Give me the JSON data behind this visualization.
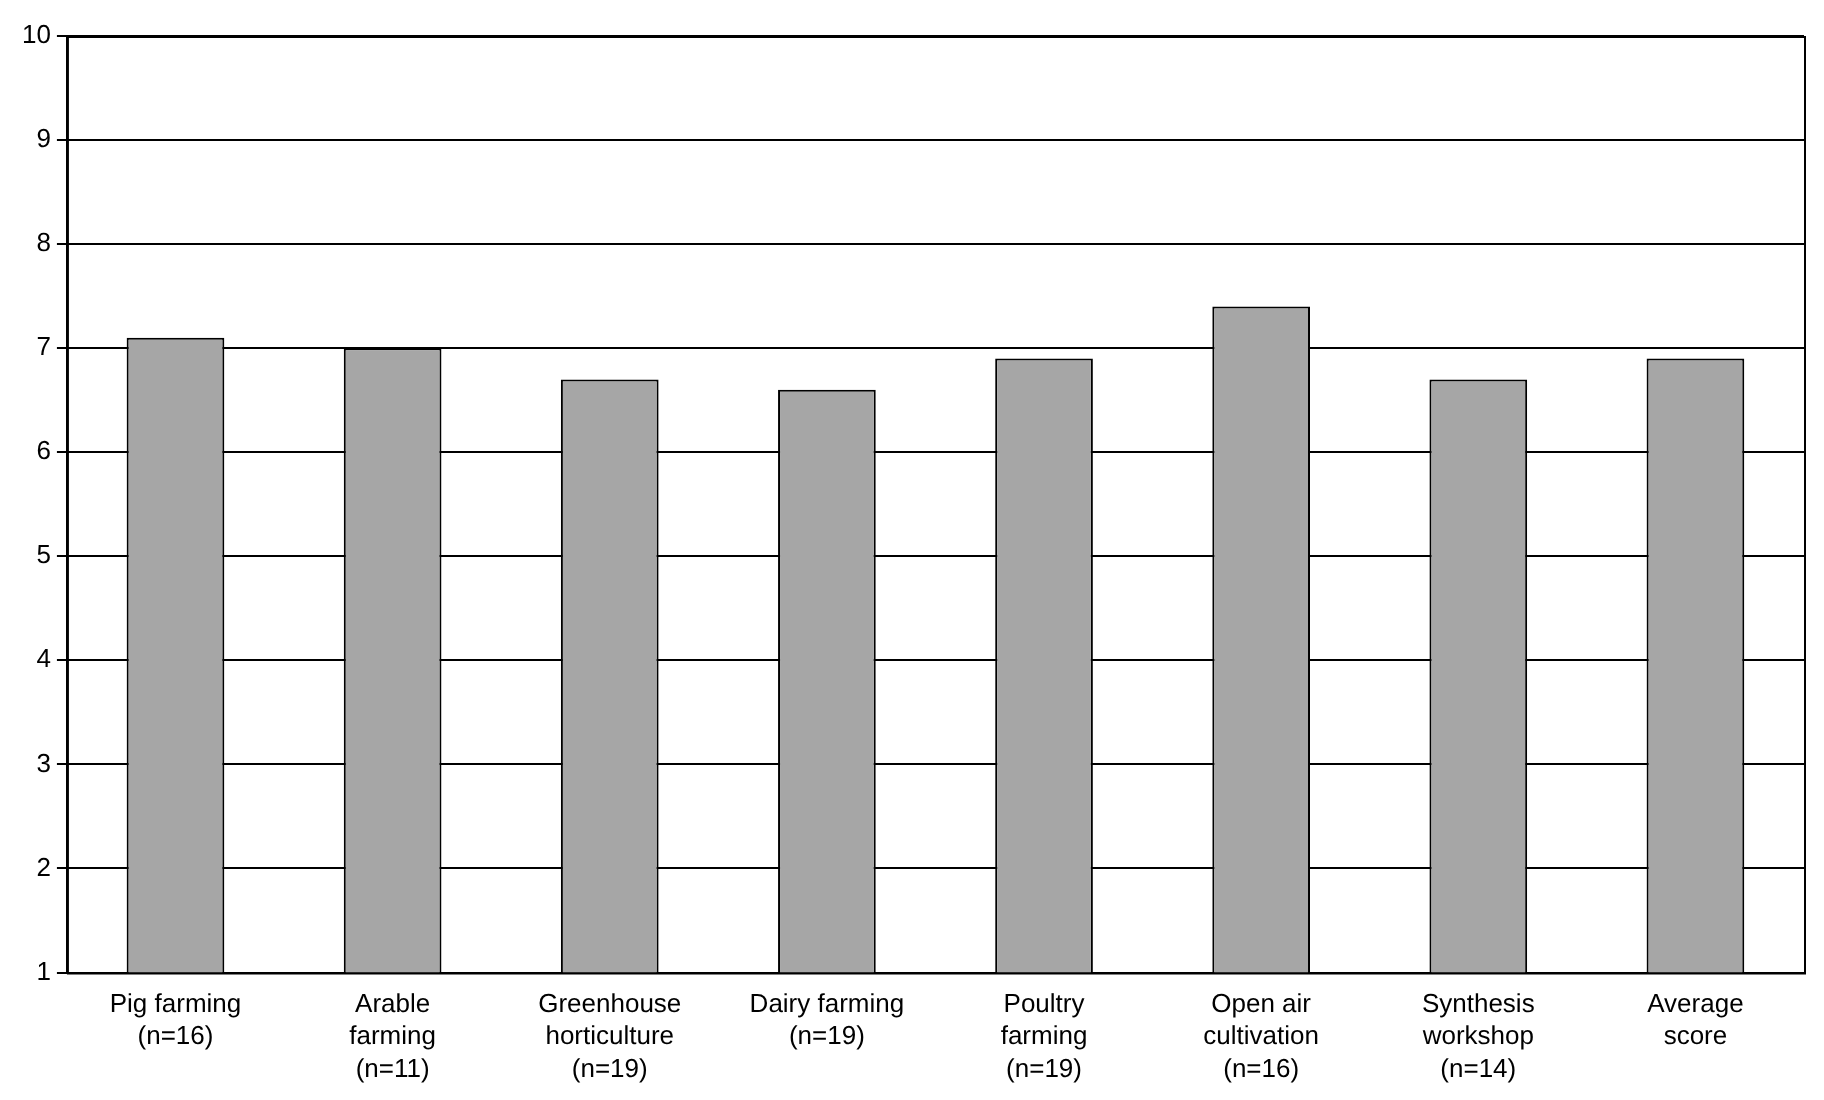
{
  "chart_data": {
    "type": "bar",
    "categories": [
      "Pig farming\n(n=16)",
      "Arable\nfarming\n(n=11)",
      "Greenhouse\nhorticulture\n(n=19)",
      "Dairy farming\n(n=19)",
      "Poultry\nfarming\n(n=19)",
      "Open air\ncultivation\n(n=16)",
      "Synthesis\nworkshop\n(n=14)",
      "Average\nscore"
    ],
    "values": [
      7.1,
      7.0,
      6.7,
      6.6,
      6.9,
      7.4,
      6.7,
      6.9
    ],
    "color": "#a6a6a6",
    "ylim": [
      1,
      10
    ],
    "yticks": [
      1,
      2,
      3,
      4,
      5,
      6,
      7,
      8,
      9,
      10
    ],
    "grid": "y"
  }
}
